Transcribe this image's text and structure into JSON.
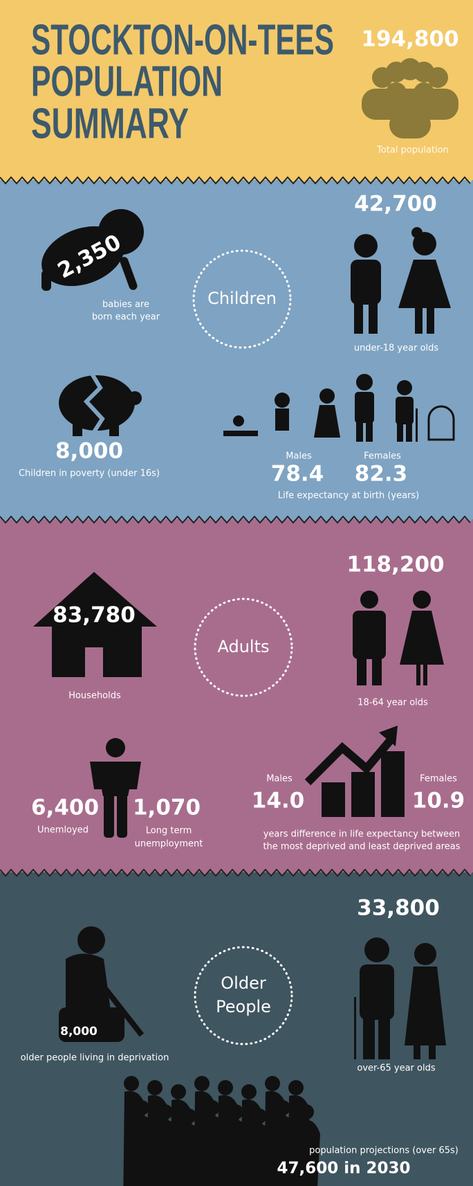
{
  "header": {
    "title": [
      "STOCKTON-ON-TEES",
      "POPULATION",
      "SUMMARY"
    ],
    "total_population": "194,800",
    "total_label": "Total population"
  },
  "children": {
    "heading": "Children",
    "babies": {
      "value": "2,350",
      "label": [
        "babies are",
        "born each year"
      ]
    },
    "under18": {
      "value": "42,700",
      "label": "under-18 year olds"
    },
    "poverty": {
      "value": "8,000",
      "label": "Children in poverty (under 16s)"
    },
    "life_expectancy": {
      "males_label": "Males",
      "males": "78.4",
      "females_label": "Females",
      "females": "82.3",
      "label": "Life expectancy at birth (years)"
    }
  },
  "adults": {
    "heading": "Adults",
    "households": {
      "value": "83,780",
      "label": "Households"
    },
    "age_18_64": {
      "value": "118,200",
      "label": "18-64 year olds"
    },
    "unemployed": {
      "value": "6,400",
      "label": "Unemloyed"
    },
    "long_term": {
      "value": "1,070",
      "label": [
        "Long term",
        "unemployment"
      ]
    },
    "gap": {
      "males_label": "Males",
      "males": "14.0",
      "females_label": "Females",
      "females": "10.9",
      "label": [
        "years difference in life expectancy between",
        "the most deprived and least deprived areas"
      ]
    }
  },
  "older": {
    "heading": [
      "Older",
      "People"
    ],
    "deprivation": {
      "value": "8,000",
      "label": "older people living in deprivation"
    },
    "over65": {
      "value": "33,800",
      "label": "over-65 year olds"
    },
    "projection": {
      "label": "population projections (over 65s)",
      "value": "47,600 in 2030"
    }
  }
}
